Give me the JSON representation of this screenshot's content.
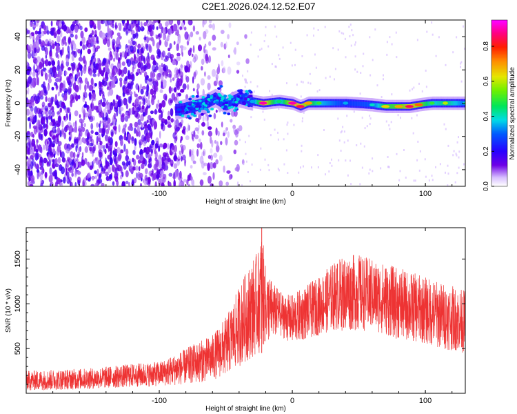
{
  "title": "C2E1.2026.024.12.52.E07",
  "chart_data": [
    {
      "type": "heatmap",
      "xlabel": "Height of straight line (km)",
      "ylabel": "Frequency (Hz)",
      "xlim": [
        -200,
        130
      ],
      "ylim": [
        -50,
        50
      ],
      "xticks": [
        -100,
        0,
        100
      ],
      "yticks": [
        -40,
        -20,
        0,
        20,
        40
      ],
      "colorbar": {
        "label": "Normalized spectral amplitude",
        "range": [
          0.0,
          0.95
        ],
        "ticks": [
          0.0,
          0.2,
          0.4,
          0.6,
          0.8
        ],
        "tick_labels": [
          "0.0",
          "0.2",
          "0.4",
          "0.6",
          "0.8"
        ]
      },
      "ridge": [
        {
          "x": -85,
          "y": -4,
          "amp": 0.25
        },
        {
          "x": -75,
          "y": -2,
          "amp": 0.3
        },
        {
          "x": -65,
          "y": 0,
          "amp": 0.35
        },
        {
          "x": -58,
          "y": 3,
          "amp": 0.3
        },
        {
          "x": -50,
          "y": -1,
          "amp": 0.35
        },
        {
          "x": -40,
          "y": 3,
          "amp": 0.35
        },
        {
          "x": -30,
          "y": 1,
          "amp": 0.35
        },
        {
          "x": -22,
          "y": 0,
          "amp": 0.9
        },
        {
          "x": -10,
          "y": 1,
          "amp": 0.45
        },
        {
          "x": 0,
          "y": 0,
          "amp": 0.9
        },
        {
          "x": 6,
          "y": -2,
          "amp": 0.85
        },
        {
          "x": 12,
          "y": 0,
          "amp": 0.7
        },
        {
          "x": 20,
          "y": 0,
          "amp": 0.5
        },
        {
          "x": 40,
          "y": 0,
          "amp": 0.35
        },
        {
          "x": 60,
          "y": -1,
          "amp": 0.4
        },
        {
          "x": 70,
          "y": -2,
          "amp": 0.65
        },
        {
          "x": 80,
          "y": -2,
          "amp": 0.7
        },
        {
          "x": 88,
          "y": -2,
          "amp": 0.85
        },
        {
          "x": 95,
          "y": -1,
          "amp": 0.75
        },
        {
          "x": 105,
          "y": 0,
          "amp": 0.5
        },
        {
          "x": 115,
          "y": 0,
          "amp": 0.6
        },
        {
          "x": 130,
          "y": 0,
          "amp": 0.4
        }
      ],
      "noise_extent_x": [
        -200,
        -40
      ],
      "noise_amp": 0.1
    },
    {
      "type": "line",
      "xlabel": "Height of straight line (km)",
      "ylabel": "SNR (10 * v/v)",
      "xlim": [
        -200,
        130
      ],
      "ylim": [
        0,
        1850
      ],
      "xticks": [
        -100,
        0,
        100
      ],
      "yticks": [
        500,
        1000,
        1500
      ],
      "color": "#ee3333",
      "series": [
        {
          "envelope_x": [
            -200,
            -150,
            -120,
            -100,
            -90,
            -80,
            -70,
            -60,
            -50,
            -45,
            -40,
            -35,
            -30,
            -25,
            -23,
            -20,
            -15,
            -10,
            -5,
            0,
            10,
            20,
            30,
            40,
            50,
            60,
            70,
            80,
            90,
            100,
            110,
            120,
            130
          ],
          "envelope_low": [
            30,
            50,
            70,
            80,
            90,
            100,
            120,
            150,
            200,
            250,
            300,
            350,
            400,
            450,
            480,
            550,
            600,
            650,
            600,
            550,
            600,
            650,
            700,
            700,
            700,
            700,
            650,
            600,
            580,
            550,
            500,
            480,
            450
          ],
          "envelope_high": [
            250,
            280,
            330,
            350,
            420,
            500,
            580,
            650,
            850,
            1000,
            1200,
            1350,
            1500,
            1600,
            1850,
            1400,
            1250,
            1150,
            1100,
            1100,
            1200,
            1300,
            1450,
            1550,
            1550,
            1500,
            1450,
            1400,
            1350,
            1300,
            1250,
            1200,
            1150
          ]
        }
      ]
    }
  ]
}
